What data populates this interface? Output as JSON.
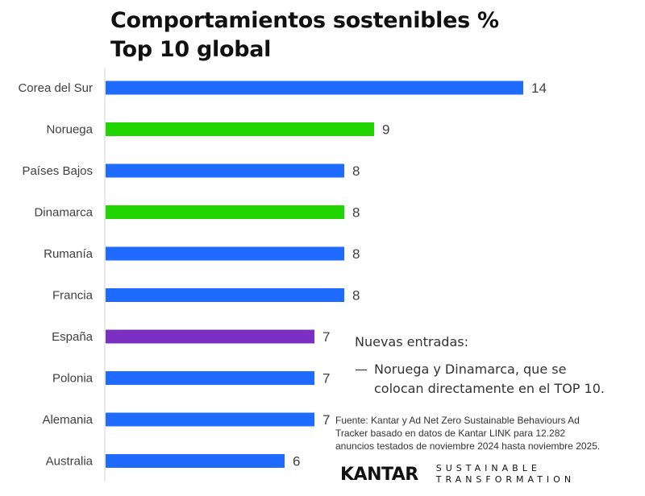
{
  "header": {
    "title_line1": "Comportamientos sostenibles %",
    "title_line2": "Top 10 global"
  },
  "chart_data": {
    "type": "bar",
    "orientation": "horizontal",
    "categories": [
      "Corea del Sur",
      "Noruega",
      "Países Bajos",
      "Dinamarca",
      "Rumanía",
      "Francia",
      "España",
      "Polonia",
      "Alemania",
      "Australia"
    ],
    "values": [
      14,
      9,
      8,
      8,
      8,
      8,
      7,
      7,
      7,
      6
    ],
    "bar_colors": [
      "#1f6bff",
      "#22d400",
      "#1f6bff",
      "#22d400",
      "#1f6bff",
      "#1f6bff",
      "#7a2fc0",
      "#1f6bff",
      "#1f6bff",
      "#1f6bff"
    ],
    "xlim": [
      0,
      14.5
    ],
    "grid": false,
    "data_labels": true
  },
  "note": {
    "heading": "Nuevas entradas:",
    "dash": "—",
    "item_line1": "Noruega y Dinamarca, que se",
    "item_line2": "colocan directamente en el TOP 10."
  },
  "source": {
    "line1": "Fuente: Kantar y Ad Net Zero Sustainable Behaviours Ad",
    "line2": "Tracker basado en datos de Kantar LINK para 12.282",
    "line3": "anuncios testados de noviembre 2024 hasta noviembre 2025."
  },
  "logo": {
    "brand": "KANTAR",
    "tagline1": "SUSTAINABLE",
    "tagline2": "TRANSFORMATION"
  }
}
